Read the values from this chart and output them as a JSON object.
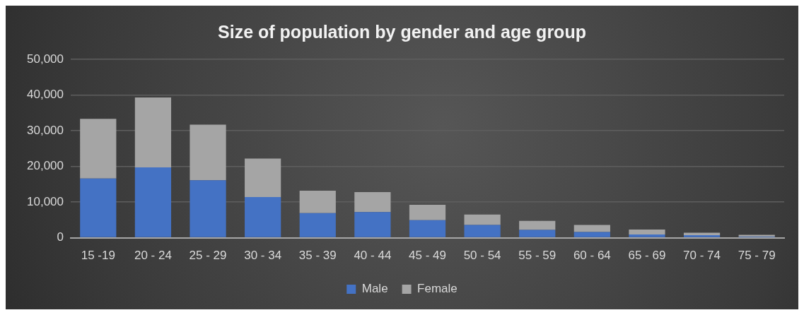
{
  "chart_data": {
    "type": "bar",
    "title": "Size of population by gender and age group",
    "categories": [
      "15 -19",
      "20 - 24",
      "25 - 29",
      "30 - 34",
      "35 - 39",
      "40 - 44",
      "45 - 49",
      "50 - 54",
      "55 - 59",
      "60 - 64",
      "65 - 69",
      "70 - 74",
      "75 - 79"
    ],
    "series": [
      {
        "name": "Male",
        "color": "#4472c4",
        "values": [
          16600,
          19700,
          16100,
          11400,
          6900,
          7200,
          4900,
          3600,
          2200,
          1600,
          900,
          700,
          300
        ]
      },
      {
        "name": "Female",
        "color": "#a5a5a5",
        "values": [
          16700,
          19600,
          15600,
          10800,
          6300,
          5600,
          4300,
          2900,
          2500,
          2000,
          1400,
          700,
          500
        ]
      }
    ],
    "stacked": true,
    "ylim": [
      0,
      50000
    ],
    "yticks": [
      0,
      {
        "value": 10000,
        "label": "10,000"
      },
      {
        "value": 20000,
        "label": "20,000"
      },
      {
        "value": 30000,
        "label": "30,000"
      },
      {
        "value": 40000,
        "label": "40,000"
      },
      {
        "value": 50000,
        "label": "50,000"
      }
    ],
    "grid": "y",
    "legend": "bottom"
  }
}
